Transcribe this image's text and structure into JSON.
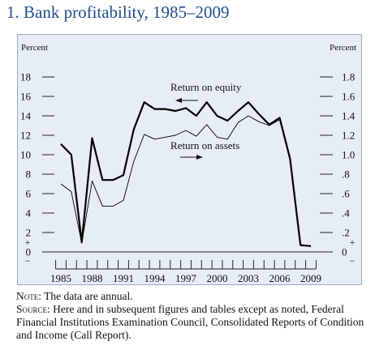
{
  "figure": {
    "title": "1.  Bank profitability, 1985–2009",
    "note_label": "Note:",
    "note_text": "The data are annual.",
    "source_label": "Source:",
    "source_text": "Here and in subsequent figures and tables except as noted, Federal Financial Institutions Examination Council, Consolidated Reports of Condition and Income (Call Report)."
  },
  "chart_data": {
    "type": "line",
    "left_axis_unit": "Percent",
    "right_axis_unit": "Percent",
    "x": [
      1985,
      1986,
      1987,
      1988,
      1989,
      1990,
      1991,
      1992,
      1993,
      1994,
      1995,
      1996,
      1997,
      1998,
      1999,
      2000,
      2001,
      2002,
      2003,
      2004,
      2005,
      2006,
      2007,
      2008,
      2009
    ],
    "x_tick_labels": [
      "1985",
      "1988",
      "1991",
      "1994",
      "1997",
      "2000",
      "2003",
      "2006",
      "2009"
    ],
    "left_ylim": [
      0,
      18
    ],
    "left_ticks": [
      "18",
      "16",
      "14",
      "12",
      "10",
      "8",
      "6",
      "4",
      "2",
      "0"
    ],
    "right_ylim": [
      0,
      1.8
    ],
    "right_ticks": [
      "1.8",
      "1.6",
      "1.4",
      "1.2",
      "1.0",
      ".8",
      ".6",
      ".4",
      ".2",
      "0"
    ],
    "series": [
      {
        "name": "Return on equity",
        "axis": "left",
        "color": "#000000",
        "values": [
          11.1,
          10.0,
          1.0,
          11.7,
          7.4,
          7.4,
          7.9,
          12.6,
          15.4,
          14.7,
          14.7,
          14.5,
          14.8,
          14.0,
          15.4,
          14.0,
          13.5,
          14.5,
          15.4,
          14.2,
          13.1,
          13.8,
          9.6,
          0.7,
          0.6
        ]
      },
      {
        "name": "Return on assets",
        "axis": "right",
        "color": "#000000",
        "values": [
          0.7,
          0.62,
          0.09,
          0.73,
          0.47,
          0.47,
          0.53,
          0.93,
          1.21,
          1.16,
          1.18,
          1.2,
          1.25,
          1.19,
          1.31,
          1.18,
          1.16,
          1.33,
          1.4,
          1.34,
          1.3,
          1.36,
          0.95,
          0.07,
          0.06
        ]
      }
    ],
    "annotations": [
      "Return on equity",
      "Return on assets"
    ],
    "grid": false
  }
}
